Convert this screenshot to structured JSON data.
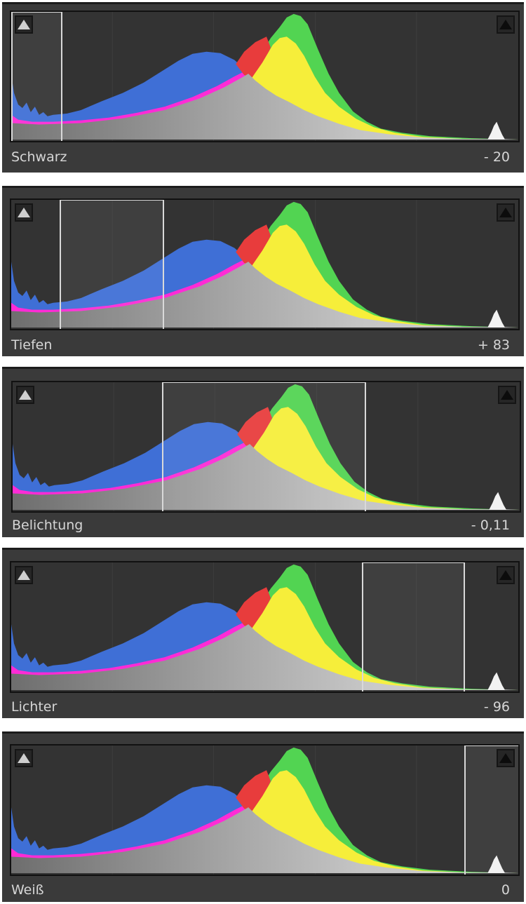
{
  "panels": [
    {
      "label": "Schwarz",
      "value": "- 20"
    },
    {
      "label": "Tiefen",
      "value": "+ 83"
    },
    {
      "label": "Belichtung",
      "value": "- 0,11"
    },
    {
      "label": "Lichter",
      "value": "- 96"
    },
    {
      "label": "Weiß",
      "value": "0"
    }
  ],
  "clipping_indicators": {
    "shadow": "shadow-clipping-triangle-icon",
    "highlight": "highlight-clipping-triangle-icon"
  },
  "colors": {
    "panel_bg": "#3a3a3a",
    "histogram_bg": "#333333",
    "blue": "#3f6fd6",
    "magenta": "#ff2bd6",
    "red": "#e83c3c",
    "yellow": "#f6ee3a",
    "green": "#52d452",
    "gray": "#c4c4c4",
    "label_text": "#d6d6d6"
  }
}
